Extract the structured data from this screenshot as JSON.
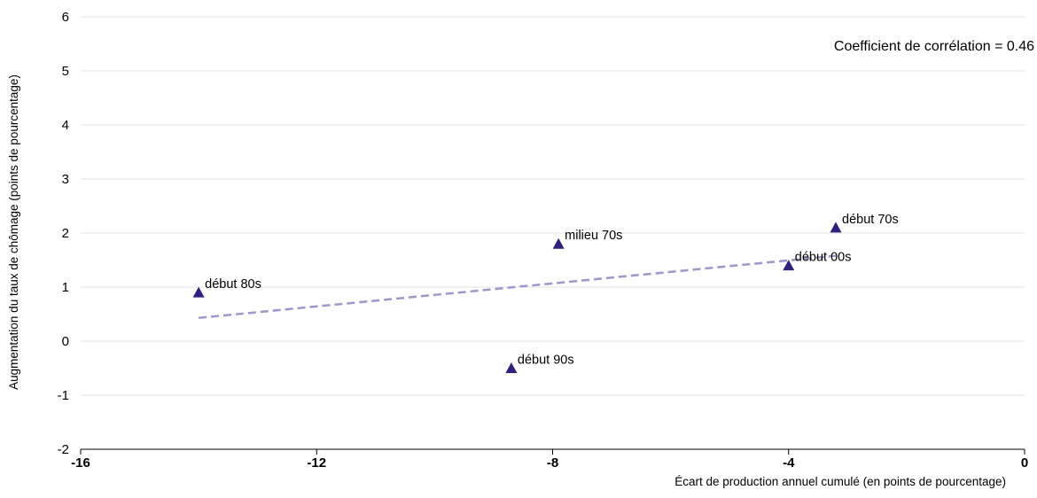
{
  "chart_data": {
    "type": "scatter",
    "xlabel": "Écart de production annuel cumulé (en points de pourcentage)",
    "ylabel": "Augmentation du taux de chômage (points de pourcentage)",
    "xlim": [
      -16,
      0
    ],
    "ylim": [
      -2,
      6
    ],
    "xticks": [
      -16,
      -12,
      -8,
      -4,
      0
    ],
    "yticks": [
      -2,
      -1,
      0,
      1,
      2,
      3,
      4,
      5,
      6
    ],
    "grid": "horizontal",
    "annotation": "Coefficient de corrélation = 0.46",
    "points": [
      {
        "label": "début 80s",
        "x": -14.0,
        "y": 0.9
      },
      {
        "label": "début 90s",
        "x": -8.7,
        "y": -0.5
      },
      {
        "label": "milieu 70s",
        "x": -7.9,
        "y": 1.8
      },
      {
        "label": "début 00s",
        "x": -4.0,
        "y": 1.4
      },
      {
        "label": "début 70s",
        "x": -3.2,
        "y": 2.1
      }
    ],
    "trendline": {
      "x": [
        -14.0,
        -3.2
      ],
      "y": [
        0.43,
        1.58
      ]
    },
    "colors": {
      "marker": "#2e2280",
      "trendline": "#9a98cc",
      "grid": "#e2e2e2",
      "axis": "#000000"
    }
  }
}
